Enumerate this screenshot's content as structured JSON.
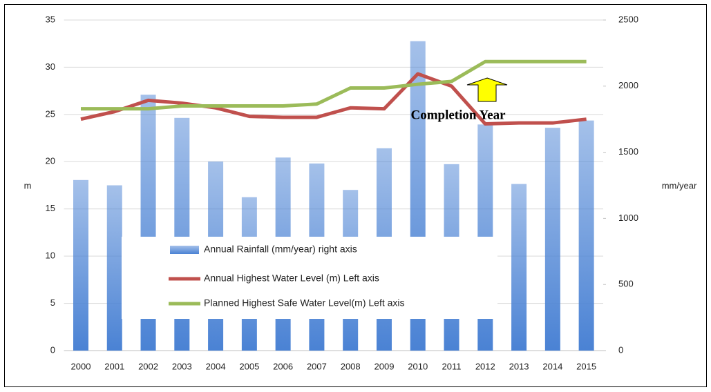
{
  "chart_data": {
    "type": "bar_line",
    "categories": [
      "2000",
      "2001",
      "2002",
      "2003",
      "2004",
      "2005",
      "2006",
      "2007",
      "2008",
      "2009",
      "2010",
      "2011",
      "2012",
      "2013",
      "2014",
      "2015"
    ],
    "series": [
      {
        "name": "Annual Rainfall (mm/year) right axis",
        "kind": "bar",
        "axis": "y2",
        "color": "#4a82d4",
        "values": [
          1290,
          1250,
          1935,
          1760,
          1430,
          1160,
          1460,
          1415,
          1215,
          1530,
          2340,
          1410,
          1710,
          1260,
          1685,
          1740
        ]
      },
      {
        "name": "Annual Highest Water Level (m) Left axis",
        "kind": "line",
        "color": "#c0504d",
        "values": [
          24.5,
          25.3,
          26.5,
          26.2,
          25.7,
          24.8,
          24.7,
          24.7,
          25.7,
          25.6,
          29.3,
          28.0,
          24.0,
          24.1,
          24.1,
          24.5
        ]
      },
      {
        "name": "Planned Highest Safe Water Level(m) Left axis",
        "kind": "line",
        "color": "#9bbb59",
        "values": [
          25.6,
          25.6,
          25.6,
          25.9,
          25.9,
          25.9,
          25.9,
          26.1,
          27.8,
          27.8,
          28.2,
          28.5,
          30.6,
          30.6,
          30.6,
          30.6
        ]
      }
    ],
    "y_label": "m",
    "y2_label": "mm/year",
    "ylim": [
      0,
      35
    ],
    "yticks": [
      0,
      5,
      10,
      15,
      20,
      25,
      30,
      35
    ],
    "y2lim": [
      0,
      2500
    ],
    "y2ticks": [
      0,
      500,
      1000,
      1500,
      2000,
      2500
    ],
    "annotation": "Completion Year",
    "grid": true
  }
}
